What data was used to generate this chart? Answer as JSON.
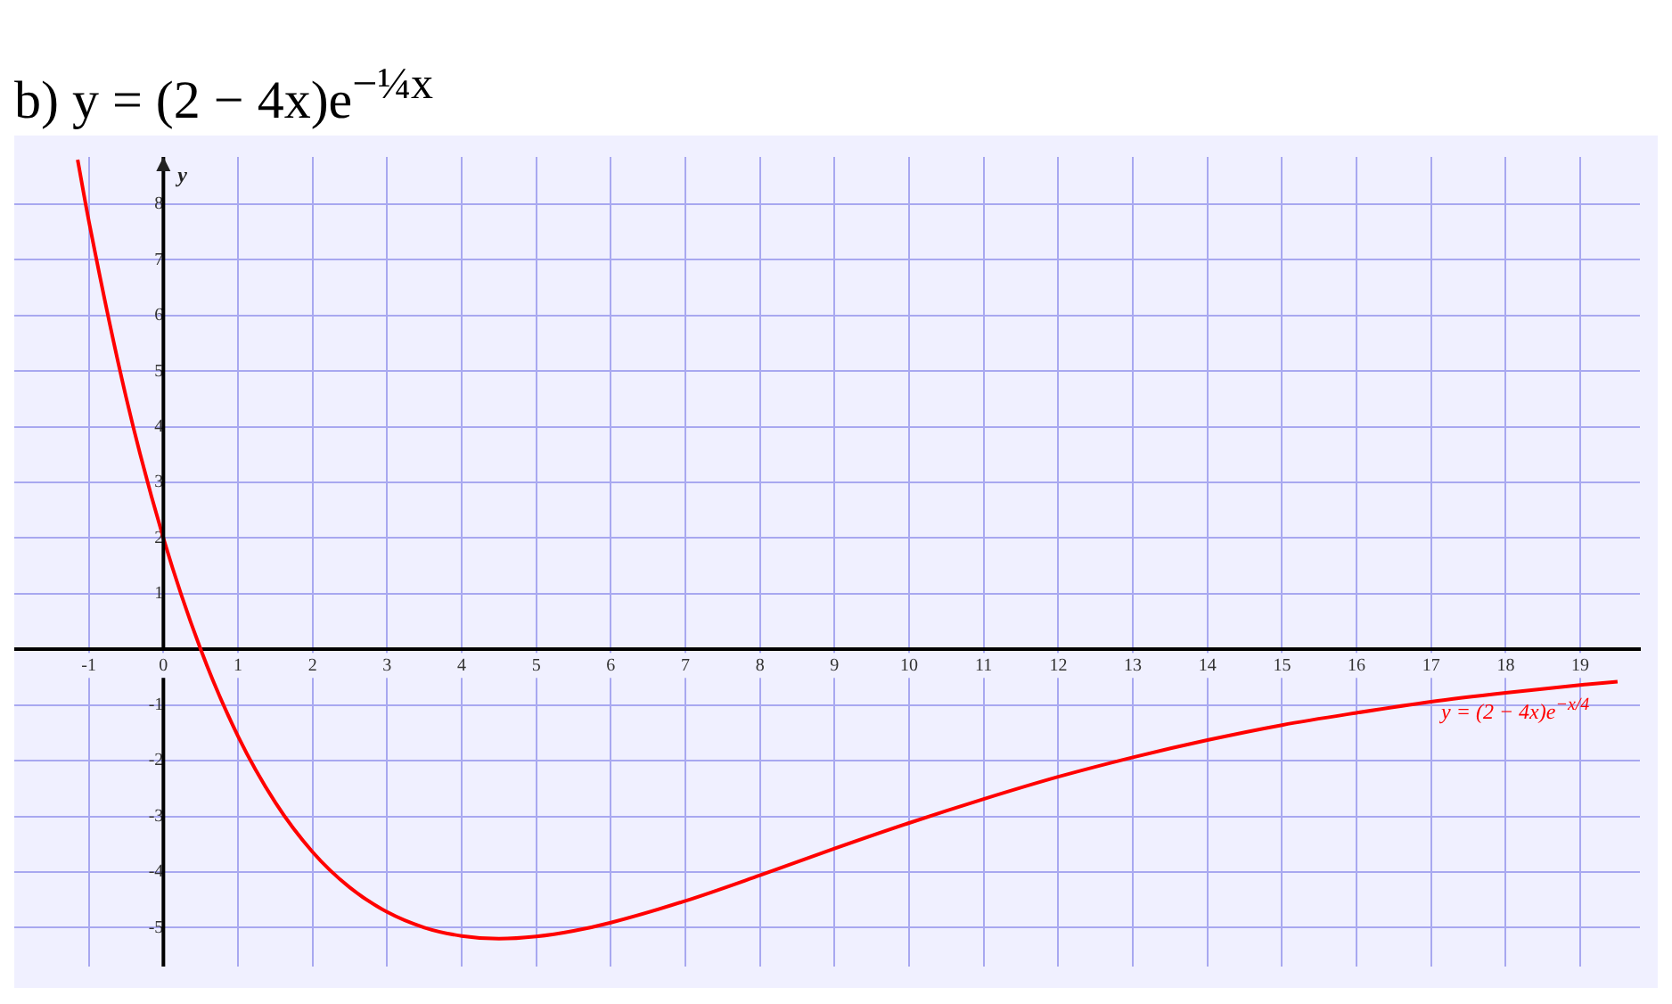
{
  "chart_data": {
    "type": "line",
    "title": "b) y = (2 − 4x)e$^{−¼x}$",
    "ylabel": "y",
    "x": [
      -1.15,
      -1,
      -0.5,
      0,
      0.5,
      1,
      1.5,
      2,
      2.5,
      3,
      3.5,
      4,
      4.5,
      5,
      5.5,
      6,
      7,
      8,
      9,
      10,
      11,
      12,
      13,
      14,
      15,
      16,
      17,
      18,
      19,
      19.5
    ],
    "series": [
      {
        "color": "#ff0000",
        "values": [
          8.8,
          7.7,
          4.53,
          2,
          0,
          -1.56,
          -2.75,
          -3.64,
          -4.28,
          -4.72,
          -5.0,
          -5.15,
          -5.2,
          -5.16,
          -5.06,
          -4.91,
          -4.52,
          -4.06,
          -3.58,
          -3.12,
          -2.69,
          -2.29,
          -1.94,
          -1.63,
          -1.36,
          -1.14,
          -0.94,
          -0.78,
          -0.64,
          -0.58
        ]
      }
    ],
    "xlim": [
      -2,
      19.8
    ],
    "ylim": [
      -5.7,
      8.85
    ],
    "xticks": [
      -1,
      0,
      1,
      2,
      3,
      4,
      5,
      6,
      7,
      8,
      9,
      10,
      11,
      12,
      13,
      14,
      15,
      16,
      17,
      18,
      19
    ],
    "yticks": [
      -5,
      -4,
      -3,
      -2,
      -1,
      {
        "value": 0,
        "label": null
      },
      1,
      2,
      3,
      4,
      5,
      6,
      7,
      8
    ],
    "annotations": [
      {
        "text": "y = (2 − 4x)e$^{−x/4}$",
        "x": 19,
        "y": -0.64
      }
    ],
    "grid": true,
    "legend": false,
    "marker": "none",
    "line_style": "solid"
  }
}
